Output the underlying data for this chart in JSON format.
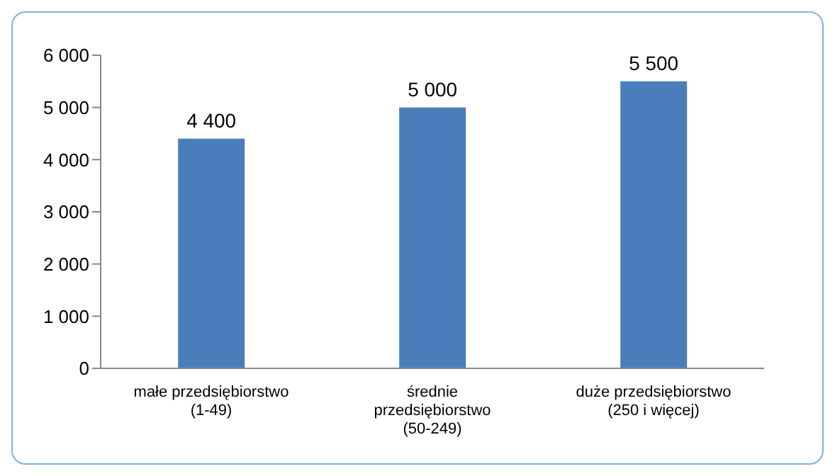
{
  "chart_data": {
    "type": "bar",
    "categories": [
      "małe przedsiębiorstwo\n(1-49)",
      "średnie\nprzedsiębiorstwo\n(50-249)",
      "duże przedsiębiorstwo\n(250 i więcej)"
    ],
    "values": [
      4400,
      5000,
      5500
    ],
    "value_labels": [
      "4 400",
      "5 000",
      "5 500"
    ],
    "color": "#4a7ebb",
    "ylim": [
      0,
      6000
    ],
    "yticks": [
      {
        "value": 0,
        "label": "0"
      },
      {
        "value": 1000,
        "label": "1 000"
      },
      {
        "value": 2000,
        "label": "2 000"
      },
      {
        "value": 3000,
        "label": "3 000"
      },
      {
        "value": 4000,
        "label": "4 000"
      },
      {
        "value": 5000,
        "label": "5 000"
      },
      {
        "value": 6000,
        "label": "6 000"
      }
    ],
    "grid": false
  }
}
